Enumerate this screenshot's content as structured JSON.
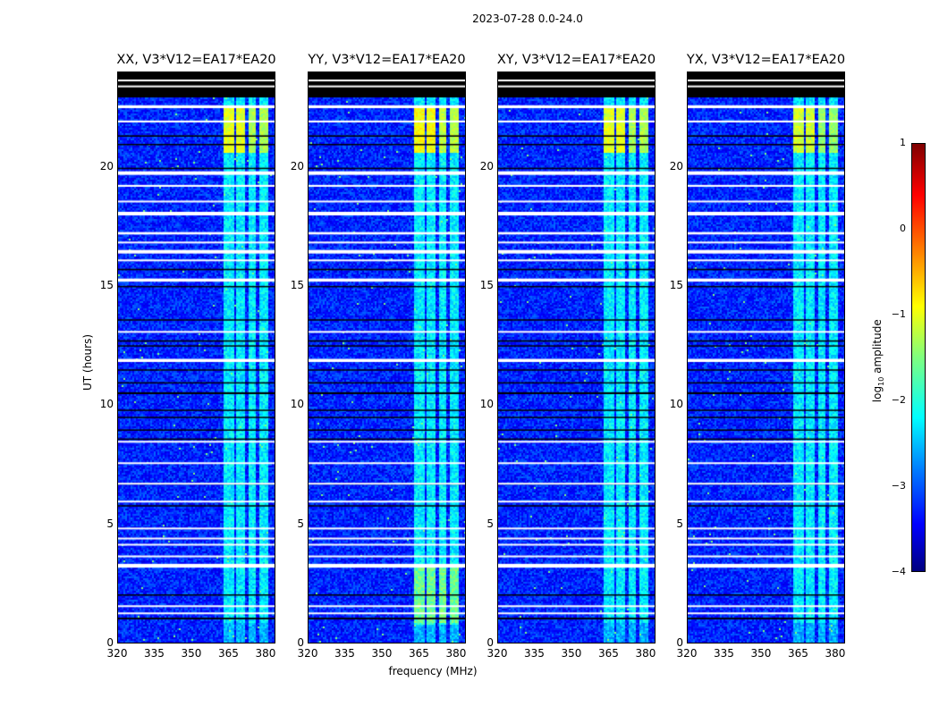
{
  "suptitle": "2023-07-28 0.0-24.0",
  "chart_data": {
    "type": "heatmap",
    "title": "2023-07-28 0.0-24.0",
    "xlabel": "frequency (MHz)",
    "ylabel": "UT (hours)",
    "xlim": [
      320,
      384
    ],
    "ylim": [
      0,
      24
    ],
    "xticks": [
      "320",
      "335",
      "350",
      "365",
      "380"
    ],
    "yticks": [
      "0",
      "5",
      "10",
      "15",
      "20"
    ],
    "panels": [
      {
        "title": "XX, V3*V12=EA17*EA20",
        "top_signal_strength": -1.0,
        "low_band_boost": 0
      },
      {
        "title": "YY, V3*V12=EA17*EA20",
        "top_signal_strength": -0.9,
        "low_band_boost": 0.6
      },
      {
        "title": "XY, V3*V12=EA17*EA20",
        "top_signal_strength": -1.0,
        "low_band_boost": 0
      },
      {
        "title": "YX, V3*V12=EA17*EA20",
        "top_signal_strength": -1.1,
        "low_band_boost": 0
      }
    ],
    "rfi_subbands_mhz": [
      [
        363,
        367
      ],
      [
        368,
        371.5
      ],
      [
        372.5,
        376
      ],
      [
        377,
        380.5
      ]
    ],
    "noise_floor_log10": -3.2,
    "rfi_level_log10": -2.2,
    "flagged_hours_white": [
      [
        22.5,
        22.62
      ],
      [
        21.9,
        21.98
      ],
      [
        19.7,
        19.85
      ],
      [
        19.2,
        19.28
      ],
      [
        18.55,
        18.62
      ],
      [
        18.0,
        18.15
      ],
      [
        17.2,
        17.3
      ],
      [
        16.85,
        16.9
      ],
      [
        16.4,
        16.55
      ],
      [
        16.1,
        16.15
      ],
      [
        15.22,
        15.35
      ],
      [
        13.1,
        13.15
      ],
      [
        11.85,
        11.98
      ],
      [
        8.48,
        8.54
      ],
      [
        7.58,
        7.64
      ],
      [
        6.72,
        6.78
      ],
      [
        5.98,
        6.03
      ],
      [
        4.85,
        4.9
      ],
      [
        4.44,
        4.48
      ],
      [
        4.18,
        4.22
      ],
      [
        3.69,
        3.73
      ],
      [
        3.22,
        3.38
      ],
      [
        1.58,
        1.64
      ],
      [
        1.28,
        1.34
      ]
    ],
    "dead_hours_black": [
      [
        22.95,
        24.0
      ],
      [
        21.3,
        21.36
      ],
      [
        20.95,
        21.0
      ],
      [
        19.95,
        20.0
      ],
      [
        15.7,
        15.76
      ],
      [
        15.0,
        15.04
      ],
      [
        13.6,
        13.64
      ],
      [
        12.7,
        12.76
      ],
      [
        12.5,
        12.55
      ],
      [
        11.5,
        11.54
      ],
      [
        10.95,
        11.0
      ],
      [
        10.5,
        10.58
      ],
      [
        9.8,
        9.85
      ],
      [
        9.5,
        9.55
      ],
      [
        8.98,
        9.02
      ],
      [
        8.6,
        8.64
      ],
      [
        6.72,
        6.76
      ],
      [
        5.8,
        5.84
      ],
      [
        2.05,
        2.1
      ],
      [
        1.05,
        1.12
      ]
    ],
    "colorbar": {
      "label": "log10 amplitude",
      "label_main": "log",
      "label_sub": "10",
      "label_rest": " amplitude",
      "range": [
        -4,
        1
      ],
      "ticks": [
        "1",
        "0",
        "−1",
        "−2",
        "−3",
        "−4"
      ],
      "colormap": "jet"
    }
  }
}
